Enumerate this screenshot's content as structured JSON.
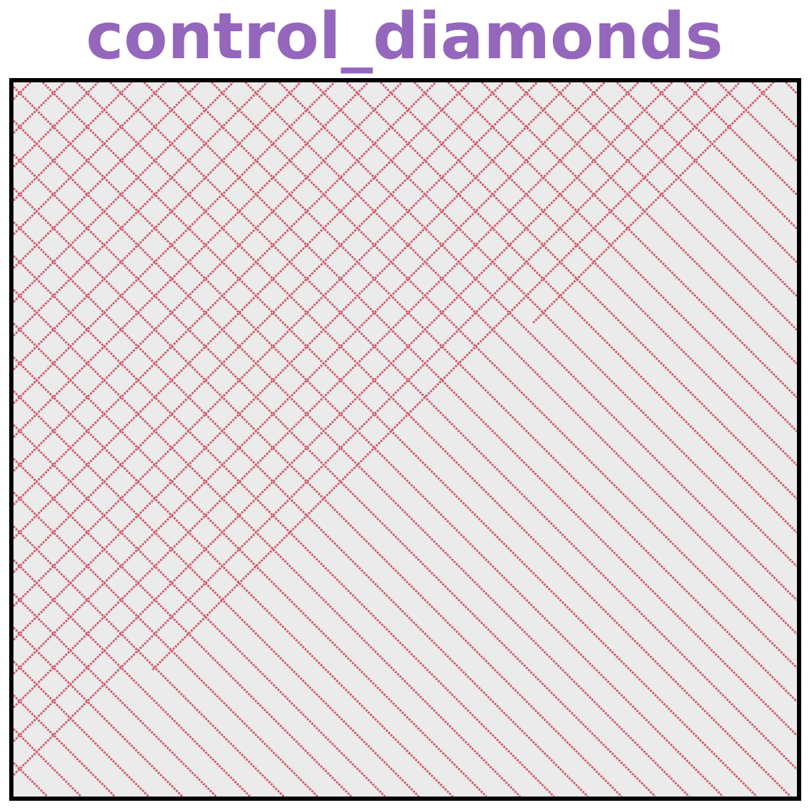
{
  "title": "control_diamonds",
  "colors": {
    "title": "#9467bd",
    "line": "#d06072",
    "background": "#ebebeb",
    "frame": "#000000"
  },
  "pattern": {
    "type": "diagonal-lattice",
    "lines": "descending and ascending diagonals",
    "crossing_region": "upper-left triangle above the anti-diagonal"
  }
}
